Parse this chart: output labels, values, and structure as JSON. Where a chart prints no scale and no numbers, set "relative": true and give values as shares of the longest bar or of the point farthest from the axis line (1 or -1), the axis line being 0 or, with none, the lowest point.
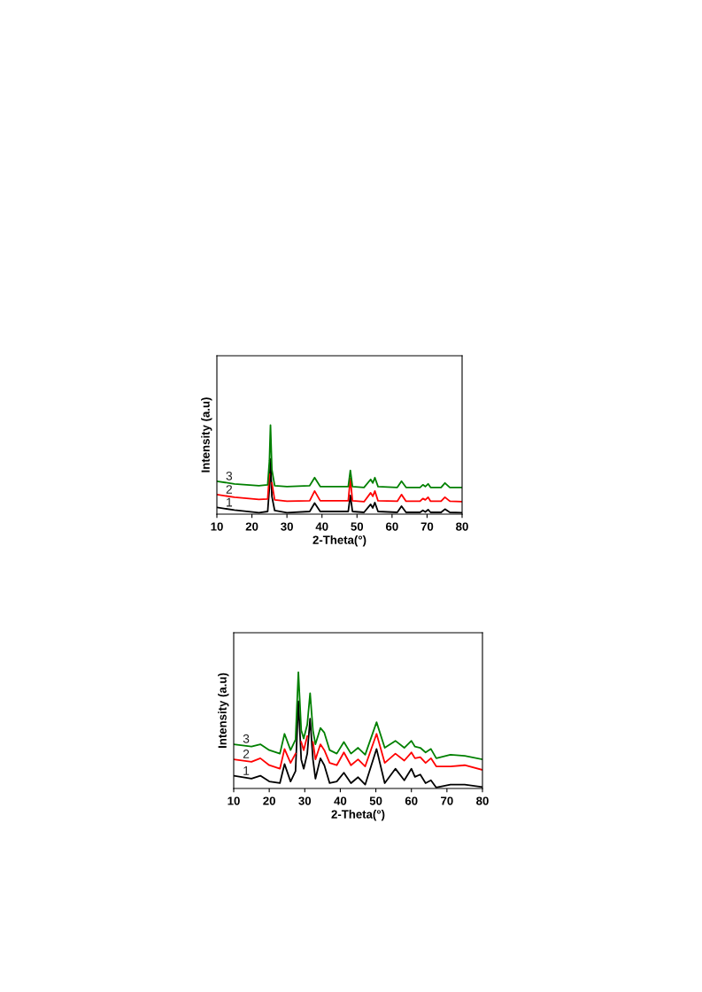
{
  "chart_data": [
    {
      "type": "line",
      "relative": true,
      "xlabel": "2-Theta(°)",
      "ylabel": "Intensity (a.u)",
      "xlim": [
        10,
        80
      ],
      "xticks": [
        10,
        20,
        30,
        40,
        50,
        60,
        70,
        80
      ],
      "tick_labels": "x",
      "grid": false,
      "legend": false,
      "marker": "none",
      "line_style": "solid",
      "series": [
        {
          "name": "1",
          "color": "#000000",
          "x": [
            10,
            15,
            22,
            24.5,
            25.0,
            25.3,
            25.7,
            26.5,
            30,
            36.5,
            37.9,
            39.5,
            47.5,
            48.1,
            48.7,
            52,
            53.9,
            54.5,
            55.1,
            56,
            61.5,
            62.7,
            64,
            68,
            68.8,
            69.5,
            70.3,
            71,
            74,
            75.1,
            76.5,
            80
          ],
          "values": [
            0.076,
            0.045,
            0.017,
            0.03,
            0.3,
            0.62,
            0.2,
            0.04,
            0.017,
            0.03,
            0.125,
            0.03,
            0.03,
            0.21,
            0.03,
            0.02,
            0.11,
            0.07,
            0.13,
            0.03,
            0.02,
            0.09,
            0.02,
            0.02,
            0.043,
            0.025,
            0.05,
            0.02,
            0.02,
            0.056,
            0.02,
            0.017
          ]
        },
        {
          "name": "2",
          "color": "#ff0000",
          "x": [
            10,
            15,
            22,
            24.5,
            25.0,
            25.3,
            25.7,
            26.5,
            30,
            36.5,
            37.9,
            39.5,
            47.5,
            48.1,
            48.7,
            52,
            53.9,
            54.5,
            55.1,
            56,
            61.5,
            62.7,
            64,
            68,
            68.8,
            69.5,
            70.3,
            71,
            74,
            75.1,
            76.5,
            80
          ],
          "values": [
            0.22,
            0.19,
            0.165,
            0.17,
            0.45,
            null,
            0.35,
            0.16,
            0.145,
            0.15,
            0.26,
            0.15,
            0.15,
            0.4,
            0.15,
            0.14,
            0.24,
            0.2,
            0.26,
            0.15,
            0.145,
            0.22,
            0.145,
            0.145,
            0.175,
            0.16,
            0.19,
            0.145,
            0.145,
            0.19,
            0.145,
            0.14
          ]
        },
        {
          "name": "3",
          "color": "#008000",
          "x": [
            10,
            15,
            22,
            24.5,
            25.0,
            25.3,
            25.7,
            26.5,
            30,
            36.5,
            37.9,
            39.5,
            47.5,
            48.1,
            48.7,
            52,
            53.9,
            54.5,
            55.1,
            56,
            61.5,
            62.7,
            64,
            68,
            68.8,
            69.5,
            70.3,
            71,
            74,
            75.1,
            76.5,
            80
          ],
          "values": [
            0.37,
            0.34,
            0.32,
            0.33,
            0.6,
            1.0,
            0.5,
            0.32,
            0.31,
            0.32,
            0.41,
            0.31,
            0.31,
            0.49,
            0.31,
            0.3,
            0.39,
            0.35,
            0.41,
            0.31,
            0.3,
            0.37,
            0.3,
            0.3,
            0.33,
            0.31,
            0.34,
            0.3,
            0.3,
            0.35,
            0.3,
            0.3
          ]
        }
      ]
    },
    {
      "type": "line",
      "relative": true,
      "xlabel": "2-Theta(°)",
      "ylabel": "Intensity (a.u)",
      "xlim": [
        10,
        80
      ],
      "xticks": [
        10,
        20,
        30,
        40,
        50,
        60,
        70,
        80
      ],
      "tick_labels": "x",
      "grid": false,
      "legend": false,
      "marker": "none",
      "line_style": "solid",
      "series": [
        {
          "name": "1",
          "color": "#000000",
          "x": [
            10,
            15,
            17.5,
            20,
            23,
            24.3,
            26,
            27.4,
            28.2,
            29,
            29.7,
            30.7,
            31.5,
            32.3,
            33,
            34.4,
            35.5,
            37,
            39,
            41,
            43,
            45,
            47,
            50.2,
            52.5,
            55.5,
            58,
            60,
            61,
            62.5,
            64,
            65.5,
            67,
            71,
            75,
            80
          ],
          "values": [
            0.11,
            0.084,
            0.11,
            0.06,
            0.046,
            0.21,
            0.06,
            0.15,
            0.75,
            0.25,
            0.17,
            0.3,
            0.6,
            0.25,
            0.084,
            0.26,
            0.2,
            0.046,
            0.06,
            0.135,
            0.046,
            0.097,
            0.033,
            0.34,
            0.046,
            0.17,
            0.07,
            0.17,
            0.1,
            0.12,
            0.046,
            0.07,
            0.008,
            0.033,
            0.033,
            0.013
          ]
        },
        {
          "name": "2",
          "color": "#ff0000",
          "x": [
            10,
            15,
            17.5,
            20,
            23,
            24.3,
            26,
            27.4,
            28.2,
            29,
            29.7,
            30.7,
            31.5,
            32.3,
            33,
            34.4,
            35.5,
            37,
            39,
            41,
            43,
            45,
            47,
            50.2,
            52.5,
            55.5,
            58,
            60,
            61,
            62.5,
            64,
            65.5,
            67,
            71,
            75,
            80
          ],
          "values": [
            0.25,
            0.23,
            0.26,
            0.2,
            0.17,
            0.34,
            0.22,
            0.3,
            null,
            0.4,
            0.33,
            0.45,
            null,
            0.4,
            0.25,
            0.38,
            0.33,
            0.22,
            0.2,
            0.31,
            0.2,
            0.25,
            0.19,
            0.47,
            0.22,
            0.3,
            0.24,
            0.31,
            0.26,
            0.27,
            0.22,
            0.26,
            0.19,
            0.19,
            0.2,
            0.16
          ]
        },
        {
          "name": "3",
          "color": "#008000",
          "x": [
            10,
            15,
            17.5,
            20,
            23,
            24.3,
            26,
            27.4,
            28.2,
            29,
            29.7,
            30.7,
            31.5,
            32.3,
            33,
            34.4,
            35.5,
            37,
            39,
            41,
            43,
            45,
            47,
            50.2,
            52.5,
            55.5,
            58,
            60,
            61,
            62.5,
            64,
            65.5,
            67,
            71,
            75,
            80
          ],
          "values": [
            0.38,
            0.36,
            0.38,
            0.33,
            0.3,
            0.47,
            0.33,
            0.42,
            1.0,
            0.5,
            0.43,
            0.55,
            0.82,
            0.5,
            0.38,
            0.52,
            0.48,
            0.33,
            0.3,
            0.4,
            0.3,
            0.35,
            0.29,
            0.57,
            0.35,
            0.41,
            0.35,
            0.41,
            0.36,
            0.35,
            0.31,
            0.34,
            0.26,
            0.29,
            0.28,
            0.25
          ]
        }
      ]
    }
  ]
}
